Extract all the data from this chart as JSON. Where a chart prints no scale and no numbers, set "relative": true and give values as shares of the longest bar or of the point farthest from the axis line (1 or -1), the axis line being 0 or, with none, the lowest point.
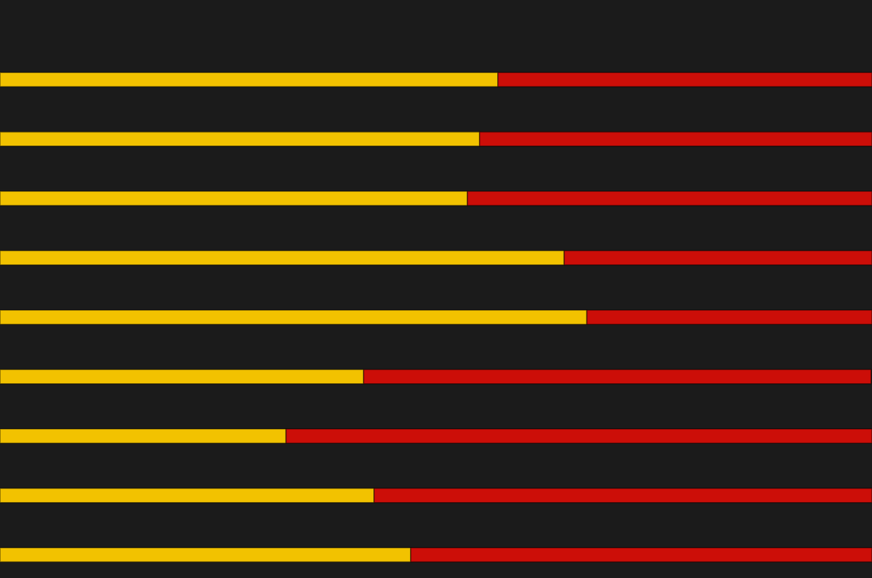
{
  "chart_data": {
    "type": "bar",
    "orientation": "horizontal",
    "stacked": true,
    "relative": true,
    "categories": [
      null,
      null,
      null,
      null,
      null,
      null,
      null,
      null,
      null
    ],
    "series": [
      {
        "color": "#f2c200",
        "values": [
          0.571,
          0.55,
          0.536,
          0.647,
          0.673,
          0.417,
          0.328,
          0.429,
          0.471
        ]
      },
      {
        "color": "#cc0e08",
        "values": [
          0.429,
          0.45,
          0.464,
          0.353,
          0.327,
          0.582,
          0.672,
          0.571,
          0.529
        ]
      }
    ]
  }
}
